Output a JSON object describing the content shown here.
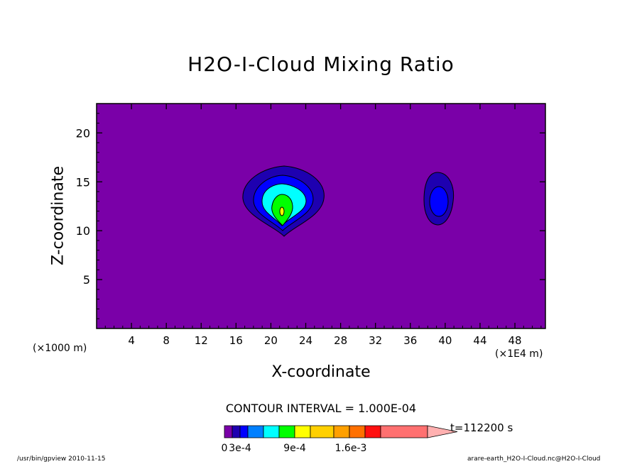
{
  "chart_data": {
    "type": "contour",
    "title": "H2O-I-Cloud Mixing Ratio",
    "xlabel": "X-coordinate",
    "ylabel": "Z-coordinate",
    "x_unit_note": "(×1000 m)",
    "y_unit_note": "(×1E4 m)",
    "xlim": [
      0,
      51.5
    ],
    "ylim": [
      0,
      23
    ],
    "xticks": [
      4,
      8,
      12,
      16,
      20,
      24,
      28,
      32,
      36,
      40,
      44,
      48
    ],
    "yticks": [
      5,
      10,
      15,
      20
    ],
    "contour_interval_text": "CONTOUR INTERVAL = 1.000E-04",
    "time_text": "t=112200 s",
    "colorbar": {
      "ticklabels": [
        "0",
        "3e-4",
        "9e-4",
        "1.6e-3"
      ],
      "colors": [
        "#7a00a8",
        "#1e00b0",
        "#0000ff",
        "#0080ff",
        "#00ffff",
        "#00ff00",
        "#ffff00",
        "#ffd000",
        "#ffa000",
        "#ff7000",
        "#ff1010",
        "#ff7070",
        "#ffb0b0"
      ]
    },
    "background_level_color": "#7a00a8",
    "features": [
      {
        "name": "main cloud",
        "x_center": 21.5,
        "z_center": 13,
        "max_level_color": "#ffff00"
      },
      {
        "name": "secondary cloud",
        "x_center": 39,
        "z_center": 13,
        "max_level_color": "#0000ff"
      }
    ]
  },
  "footer": {
    "left": "/usr/bin/gpview   2010-11-15",
    "right": "arare-earth_H2O-I-Cloud.nc@H2O-I-Cloud"
  }
}
